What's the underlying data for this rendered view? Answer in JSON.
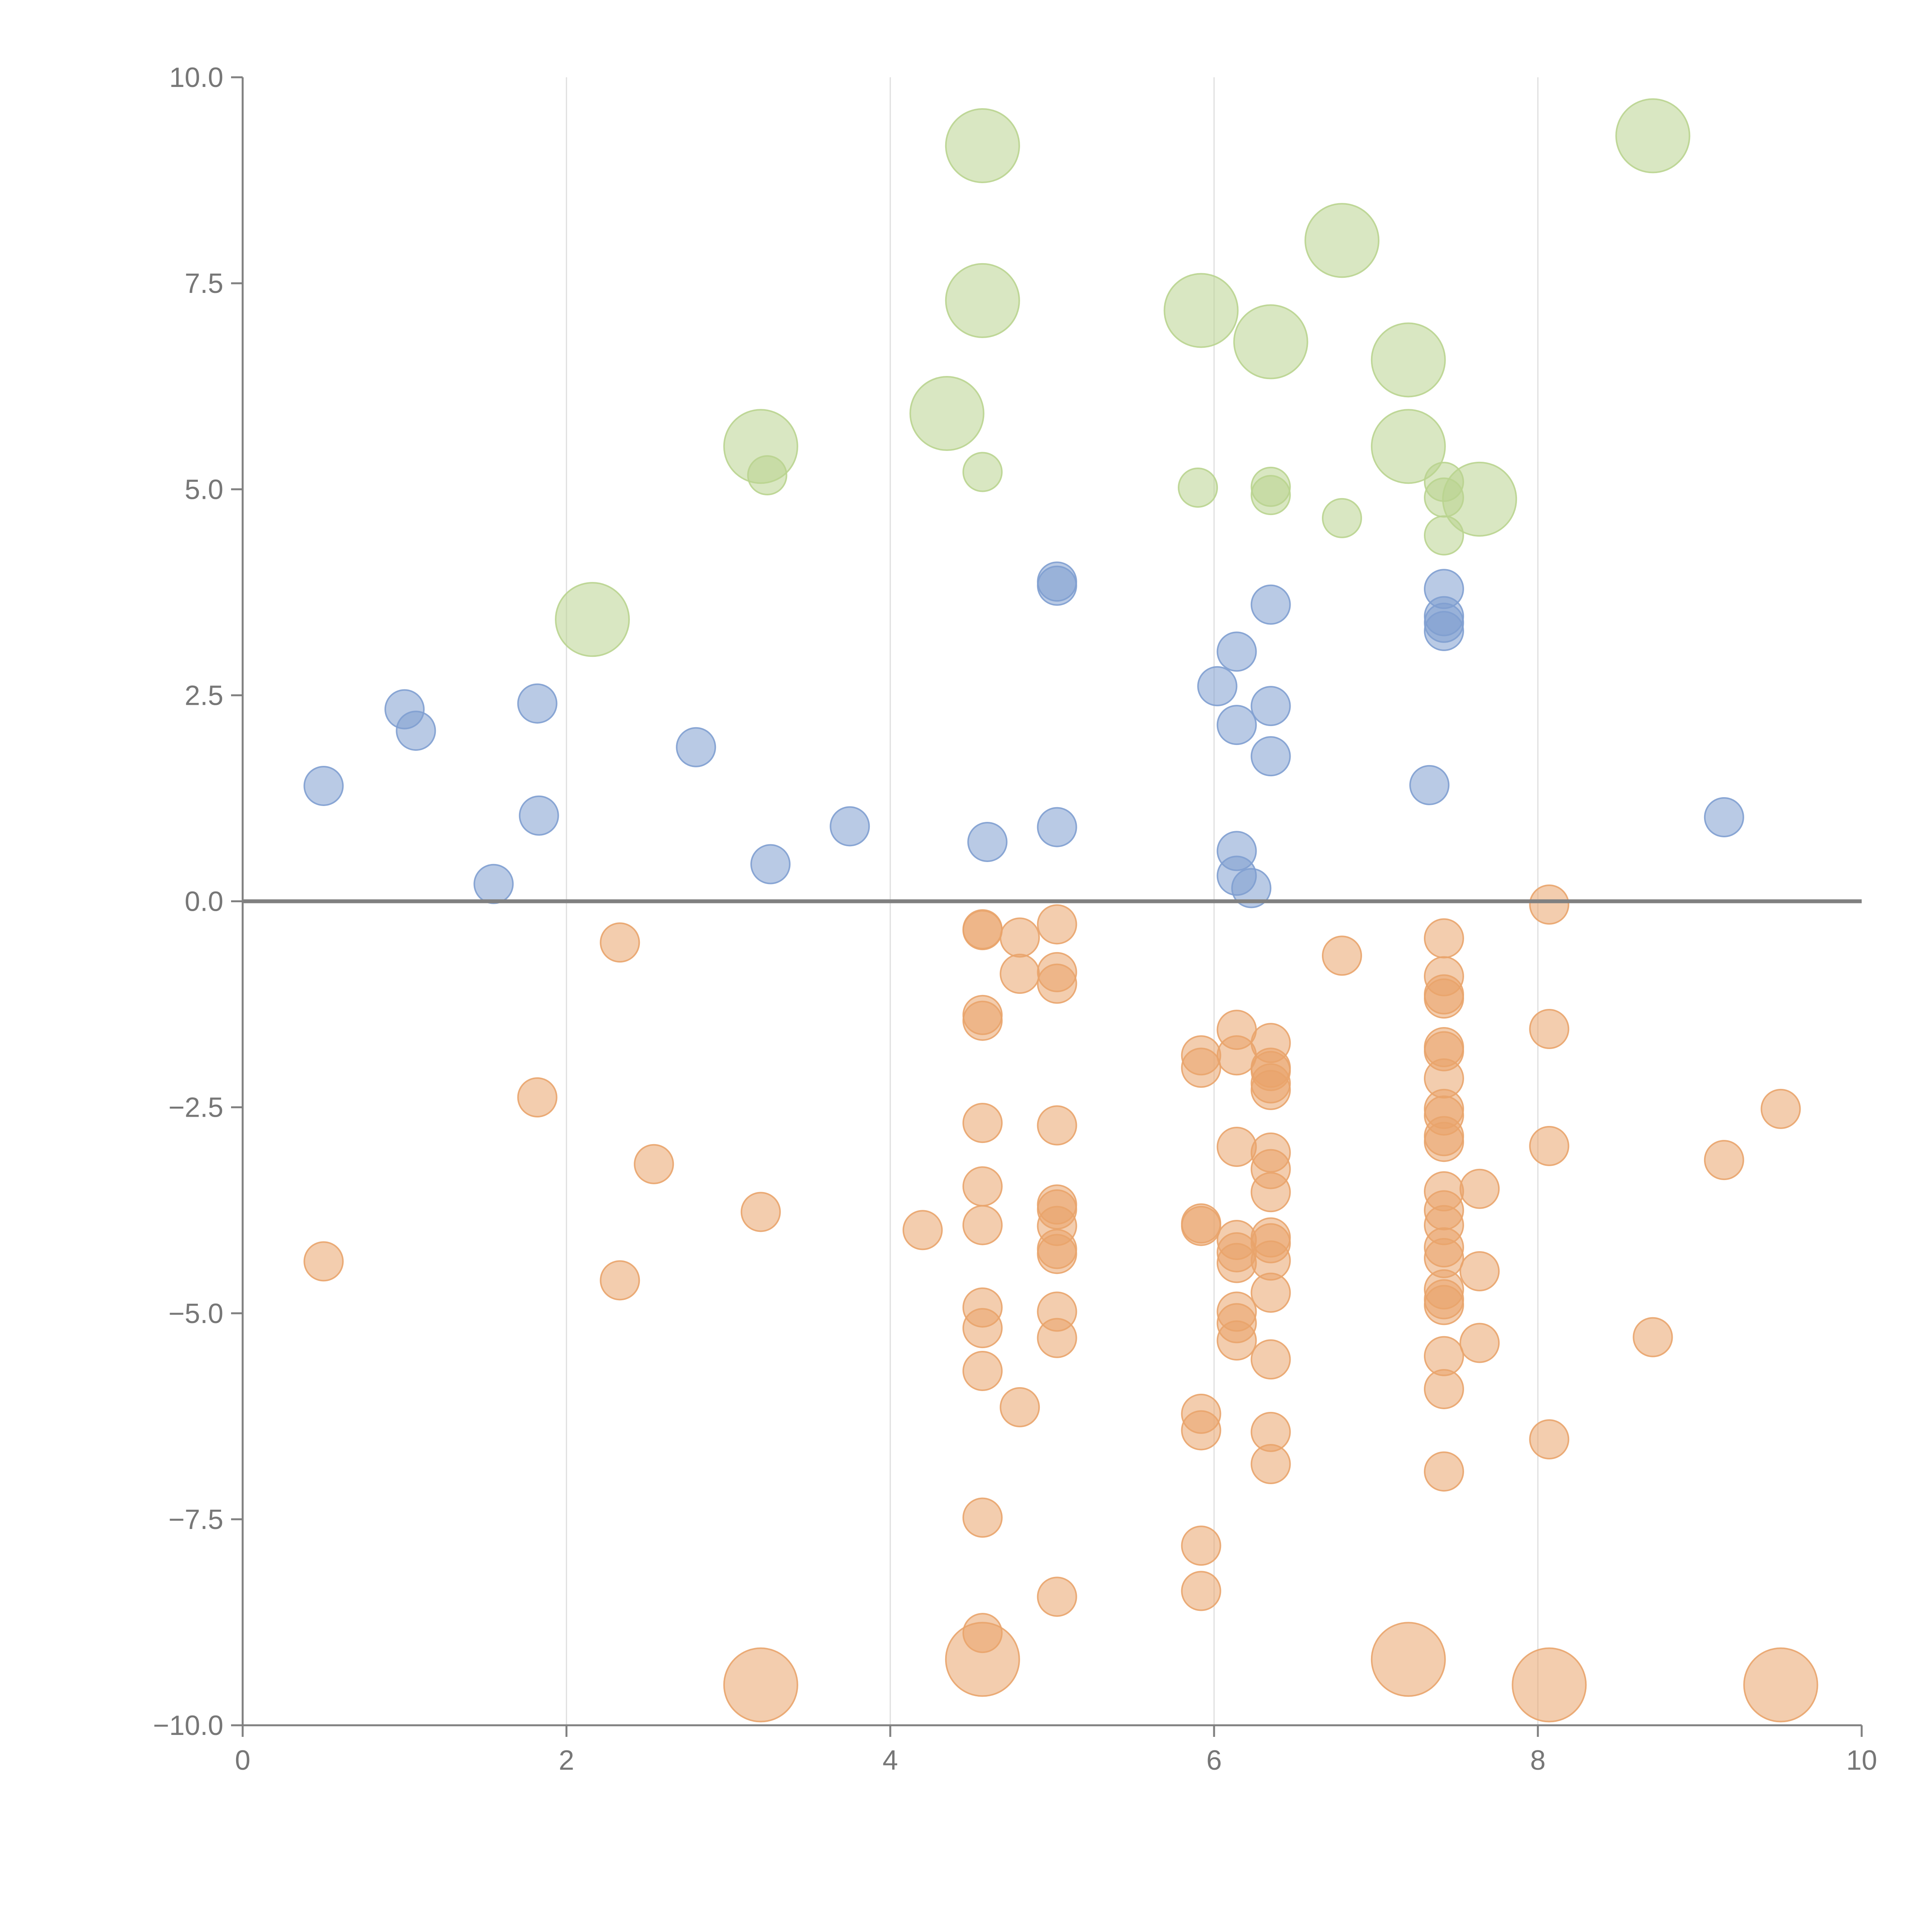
{
  "chart_data": {
    "type": "scatter",
    "title": "",
    "xlabel": "",
    "ylabel": "",
    "xlim": [
      0,
      10
    ],
    "ylim": [
      -10,
      10
    ],
    "x_ticks": [
      0,
      2,
      4,
      6,
      8,
      10
    ],
    "x_tick_labels": [
      "0",
      "2",
      "4",
      "6",
      "8",
      "10"
    ],
    "y_ticks": [
      10,
      7.5,
      5,
      2.5,
      0,
      -2.5,
      -5,
      -7.5,
      -10
    ],
    "y_tick_labels": [
      "10.0",
      "7.5",
      "5.0",
      "2.5",
      "0.0",
      "−2.5",
      "−5.0",
      "−7.5",
      "−10.0"
    ],
    "grid": "vertical gridlines at x ticks",
    "legend": "none",
    "reference_line": {
      "y": 0
    },
    "series": [
      {
        "color": "#7f9fd0",
        "marker_size": "small",
        "points": [
          [
            0.5,
            1.4
          ],
          [
            1.0,
            2.33
          ],
          [
            1.07,
            2.07
          ],
          [
            1.55,
            0.21
          ],
          [
            1.82,
            2.4
          ],
          [
            1.83,
            1.04
          ],
          [
            2.8,
            1.87
          ],
          [
            3.26,
            0.45
          ],
          [
            3.75,
            0.91
          ],
          [
            4.6,
            0.72
          ],
          [
            5.03,
            0.9
          ],
          [
            5.03,
            3.88
          ],
          [
            5.03,
            3.83
          ],
          [
            6.02,
            2.61
          ],
          [
            6.14,
            3.03
          ],
          [
            6.14,
            2.14
          ],
          [
            6.14,
            0.61
          ],
          [
            6.14,
            0.31
          ],
          [
            6.23,
            0.16
          ],
          [
            6.35,
            3.6
          ],
          [
            6.35,
            2.37
          ],
          [
            6.35,
            1.76
          ],
          [
            7.33,
            1.41
          ],
          [
            7.42,
            3.79
          ],
          [
            7.42,
            3.46
          ],
          [
            7.42,
            3.38
          ],
          [
            7.42,
            3.28
          ],
          [
            9.15,
            1.02
          ]
        ]
      },
      {
        "color": "#e9a46c",
        "marker_size": "small",
        "points": [
          [
            0.5,
            -4.37
          ],
          [
            1.82,
            -2.38
          ],
          [
            2.33,
            -0.5
          ],
          [
            2.33,
            -4.6
          ],
          [
            2.54,
            -3.19
          ],
          [
            3.2,
            -3.77
          ],
          [
            4.2,
            -3.99
          ],
          [
            4.57,
            -0.35
          ],
          [
            4.57,
            -0.34
          ],
          [
            4.57,
            -1.38
          ],
          [
            4.57,
            -1.45
          ],
          [
            4.57,
            -2.69
          ],
          [
            4.57,
            -3.46
          ],
          [
            4.57,
            -3.93
          ],
          [
            4.57,
            -4.93
          ],
          [
            4.57,
            -5.18
          ],
          [
            4.57,
            -5.7
          ],
          [
            4.57,
            -7.48
          ],
          [
            4.57,
            -8.88
          ],
          [
            4.8,
            -0.44
          ],
          [
            4.8,
            -0.88
          ],
          [
            4.8,
            -6.14
          ],
          [
            5.03,
            -0.28
          ],
          [
            5.03,
            -0.86
          ],
          [
            5.03,
            -1.0
          ],
          [
            5.03,
            -2.72
          ],
          [
            5.03,
            -3.68
          ],
          [
            5.03,
            -3.74
          ],
          [
            5.03,
            -3.94
          ],
          [
            5.03,
            -4.22
          ],
          [
            5.03,
            -4.28
          ],
          [
            5.03,
            -4.98
          ],
          [
            5.03,
            -5.3
          ],
          [
            5.03,
            -8.44
          ],
          [
            5.92,
            -1.87
          ],
          [
            5.92,
            -2.02
          ],
          [
            5.92,
            -3.91
          ],
          [
            5.92,
            -3.94
          ],
          [
            5.92,
            -6.22
          ],
          [
            5.92,
            -6.42
          ],
          [
            5.92,
            -7.82
          ],
          [
            5.92,
            -8.37
          ],
          [
            6.14,
            -1.56
          ],
          [
            6.14,
            -1.87
          ],
          [
            6.14,
            -2.98
          ],
          [
            6.14,
            -4.11
          ],
          [
            6.14,
            -4.26
          ],
          [
            6.14,
            -4.39
          ],
          [
            6.14,
            -4.98
          ],
          [
            6.14,
            -5.12
          ],
          [
            6.14,
            -5.33
          ],
          [
            6.35,
            -1.72
          ],
          [
            6.35,
            -2.02
          ],
          [
            6.35,
            -2.06
          ],
          [
            6.35,
            -2.21
          ],
          [
            6.35,
            -2.29
          ],
          [
            6.35,
            -3.05
          ],
          [
            6.35,
            -3.25
          ],
          [
            6.35,
            -3.53
          ],
          [
            6.35,
            -4.08
          ],
          [
            6.35,
            -4.15
          ],
          [
            6.35,
            -4.36
          ],
          [
            6.35,
            -4.75
          ],
          [
            6.35,
            -5.56
          ],
          [
            6.35,
            -6.44
          ],
          [
            6.35,
            -6.83
          ],
          [
            6.79,
            -0.66
          ],
          [
            7.42,
            -0.45
          ],
          [
            7.42,
            -0.91
          ],
          [
            7.42,
            -1.13
          ],
          [
            7.42,
            -1.18
          ],
          [
            7.42,
            -1.77
          ],
          [
            7.42,
            -1.82
          ],
          [
            7.42,
            -2.15
          ],
          [
            7.42,
            -2.52
          ],
          [
            7.42,
            -2.6
          ],
          [
            7.42,
            -2.85
          ],
          [
            7.42,
            -2.92
          ],
          [
            7.42,
            -3.52
          ],
          [
            7.42,
            -3.75
          ],
          [
            7.42,
            -3.93
          ],
          [
            7.42,
            -4.2
          ],
          [
            7.42,
            -4.33
          ],
          [
            7.42,
            -4.71
          ],
          [
            7.42,
            -4.83
          ],
          [
            7.42,
            -4.9
          ],
          [
            7.42,
            -5.52
          ],
          [
            7.42,
            -5.92
          ],
          [
            7.42,
            -6.92
          ],
          [
            7.64,
            -3.49
          ],
          [
            7.64,
            -4.49
          ],
          [
            7.64,
            -5.36
          ],
          [
            8.07,
            -0.04
          ],
          [
            8.07,
            -1.55
          ],
          [
            8.07,
            -2.97
          ],
          [
            8.07,
            -6.53
          ],
          [
            8.71,
            -5.29
          ],
          [
            9.15,
            -3.14
          ],
          [
            9.5,
            -2.52
          ]
        ]
      },
      {
        "color": "#b9d48f",
        "marker_size": "small",
        "points": [
          [
            3.24,
            5.17
          ],
          [
            4.57,
            5.21
          ],
          [
            5.9,
            5.02
          ],
          [
            6.35,
            5.03
          ],
          [
            6.35,
            4.93
          ],
          [
            6.79,
            4.65
          ],
          [
            7.42,
            5.09
          ],
          [
            7.42,
            4.9
          ],
          [
            7.42,
            4.44
          ]
        ]
      },
      {
        "color": "#b9d48f",
        "marker_size": "large",
        "points": [
          [
            2.16,
            3.42
          ],
          [
            3.2,
            5.52
          ],
          [
            4.35,
            5.92
          ],
          [
            4.57,
            9.17
          ],
          [
            4.57,
            7.29
          ],
          [
            5.92,
            7.17
          ],
          [
            6.35,
            6.79
          ],
          [
            6.79,
            8.02
          ],
          [
            7.2,
            6.57
          ],
          [
            7.2,
            5.52
          ],
          [
            7.64,
            4.88
          ],
          [
            8.71,
            9.29
          ]
        ]
      },
      {
        "color": "#e9a46c",
        "marker_size": "large",
        "points": [
          [
            3.2,
            -9.51
          ],
          [
            4.57,
            -9.2
          ],
          [
            7.2,
            -9.2
          ],
          [
            8.07,
            -9.51
          ],
          [
            9.5,
            -9.51
          ]
        ]
      }
    ]
  }
}
